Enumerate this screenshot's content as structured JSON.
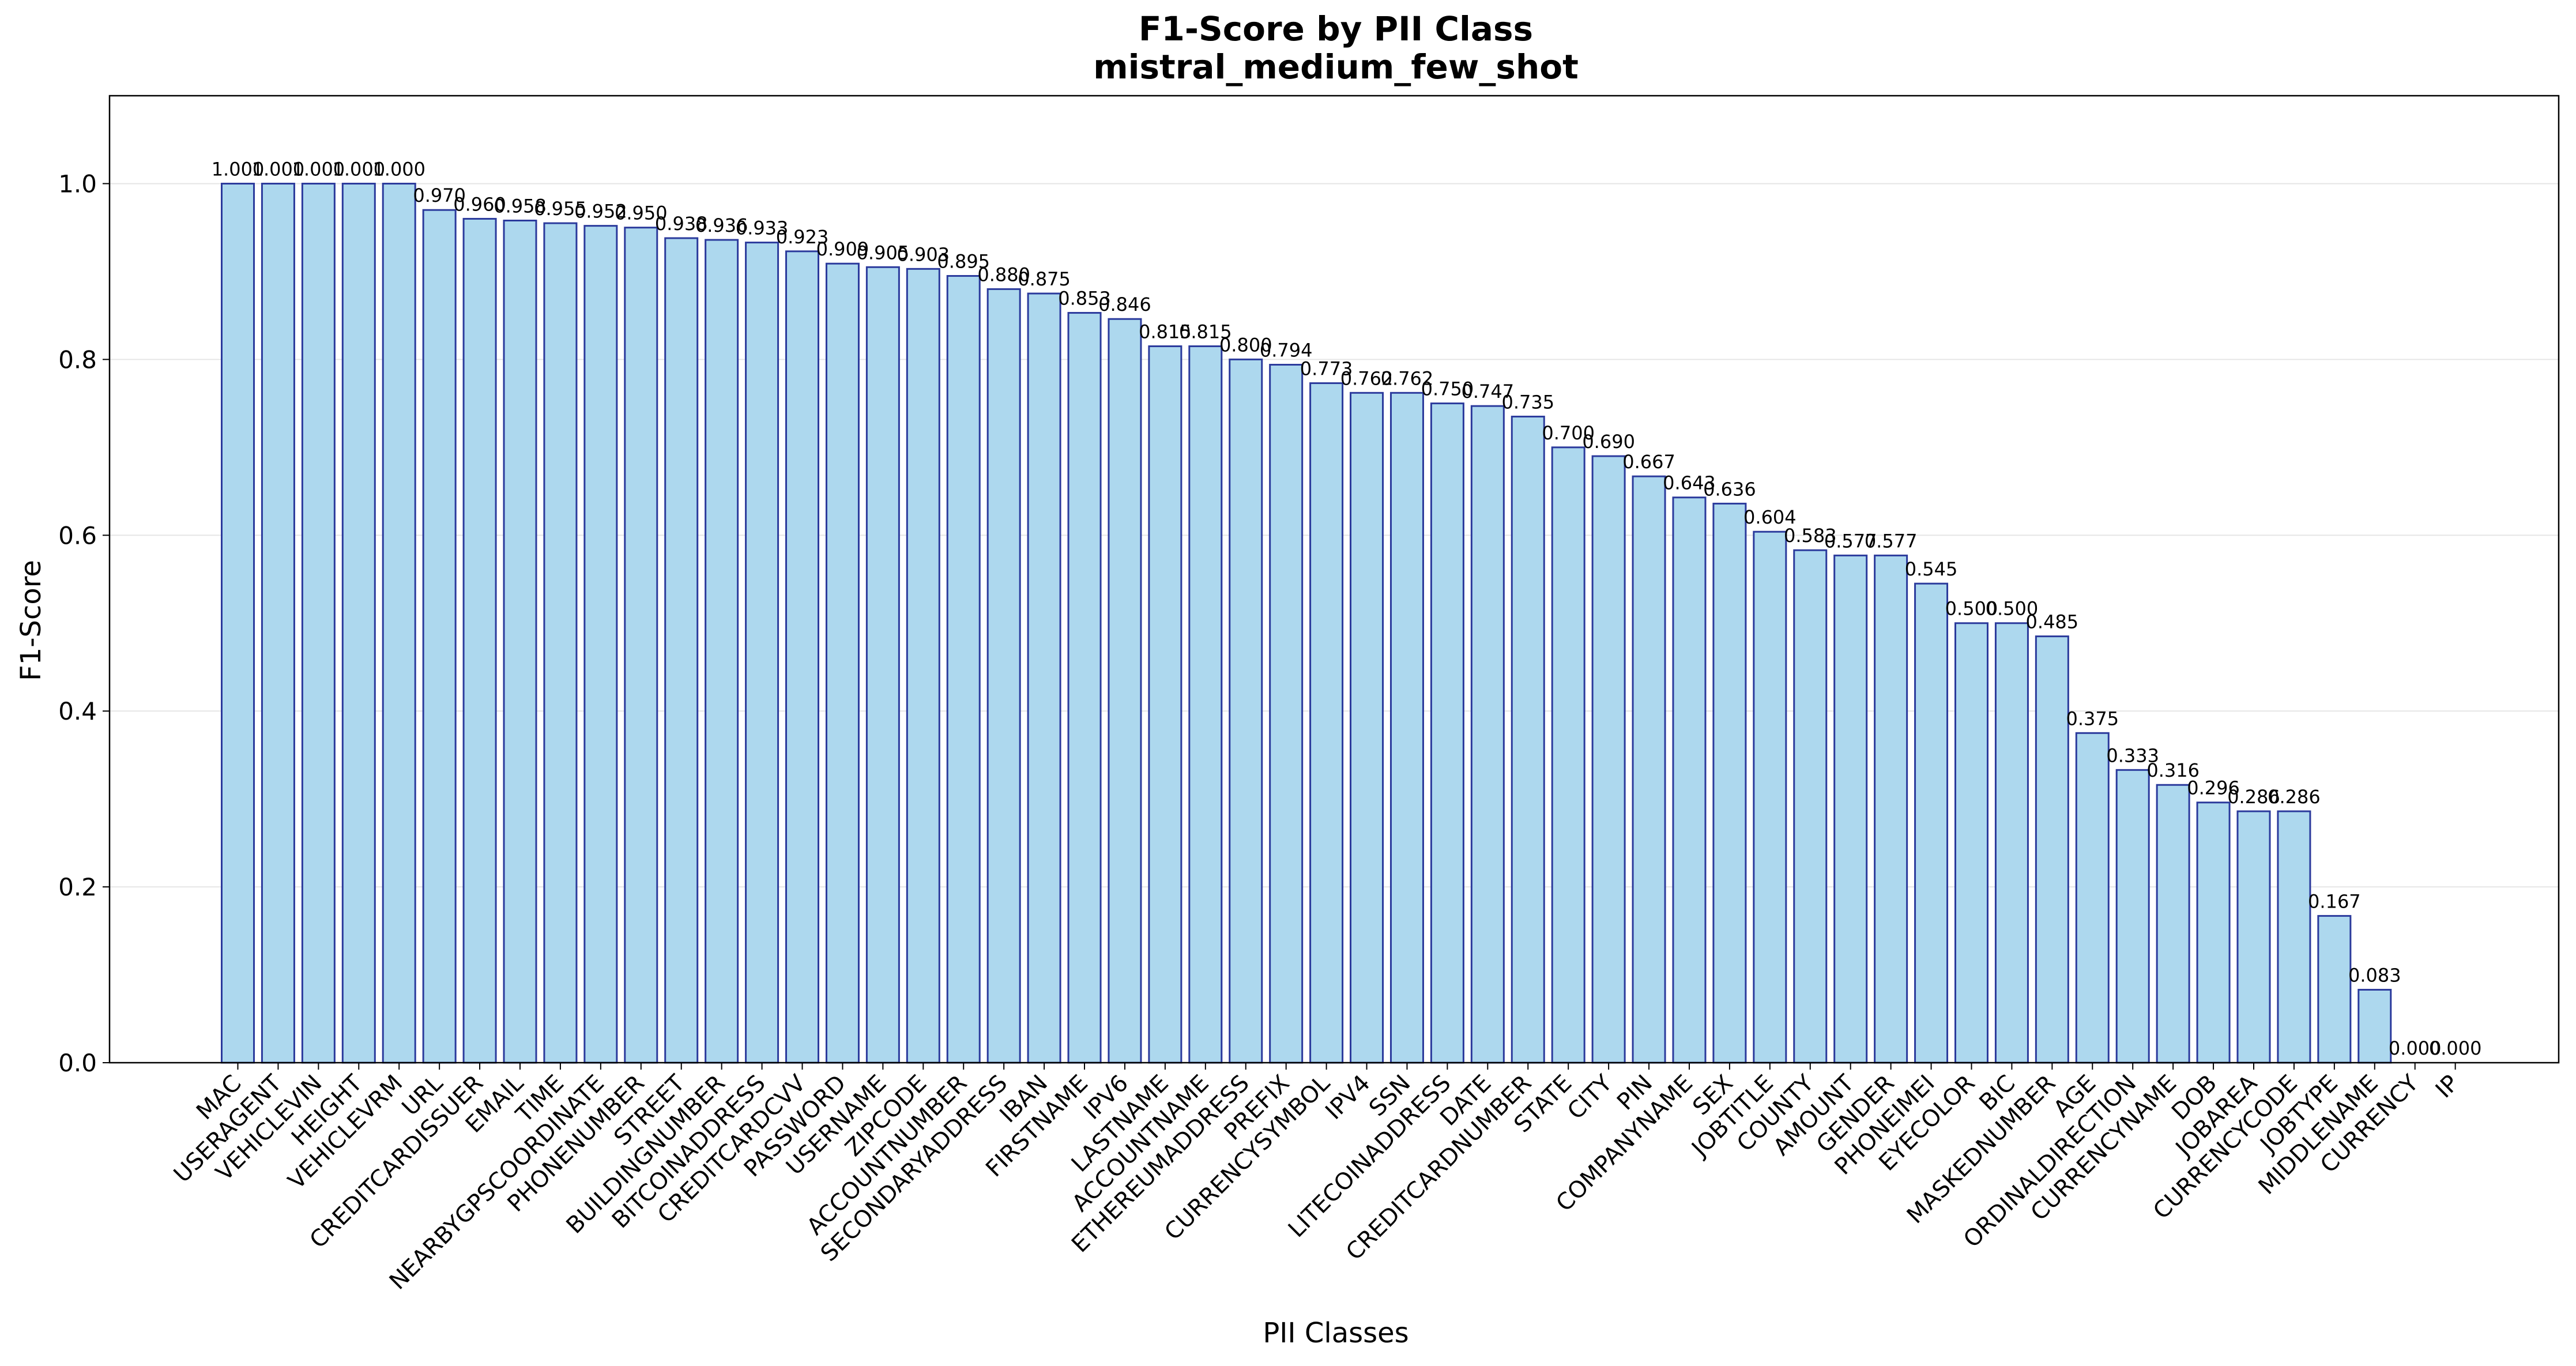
{
  "chart_data": {
    "type": "bar",
    "title": "F1-Score by PII Class",
    "subtitle": "mistral_medium_few_shot",
    "xlabel": "PII Classes",
    "ylabel": "F1-Score",
    "ylim": [
      0,
      1.1
    ],
    "yticks": [
      "0.0",
      "0.2",
      "0.4",
      "0.6",
      "0.8",
      "1.0"
    ],
    "grid": "y",
    "legend": "none",
    "bar_fill": "#add8ee",
    "bar_edge": "#2b3a9c",
    "categories": [
      "MAC",
      "USERAGENT",
      "VEHICLEVIN",
      "HEIGHT",
      "VEHICLEVRM",
      "URL",
      "CREDITCARDISSUER",
      "EMAIL",
      "TIME",
      "NEARBYGPSCOORDINATE",
      "PHONENUMBER",
      "STREET",
      "BUILDINGNUMBER",
      "BITCOINADDRESS",
      "CREDITCARDCVV",
      "PASSWORD",
      "USERNAME",
      "ZIPCODE",
      "ACCOUNTNUMBER",
      "SECONDARYADDRESS",
      "IBAN",
      "FIRSTNAME",
      "IPV6",
      "LASTNAME",
      "ACCOUNTNAME",
      "ETHEREUMADDRESS",
      "PREFIX",
      "CURRENCYSYMBOL",
      "IPV4",
      "SSN",
      "LITECOINADDRESS",
      "DATE",
      "CREDITCARDNUMBER",
      "STATE",
      "CITY",
      "PIN",
      "COMPANYNAME",
      "SEX",
      "JOBTITLE",
      "COUNTY",
      "AMOUNT",
      "GENDER",
      "PHONEIMEI",
      "EYECOLOR",
      "BIC",
      "MASKEDNUMBER",
      "AGE",
      "ORDINALDIRECTION",
      "CURRENCYNAME",
      "DOB",
      "JOBAREA",
      "CURRENCYCODE",
      "JOBTYPE",
      "MIDDLENAME",
      "CURRENCY",
      "IP"
    ],
    "values": [
      1.0,
      1.0,
      1.0,
      1.0,
      1.0,
      0.97,
      0.96,
      0.958,
      0.955,
      0.952,
      0.95,
      0.938,
      0.936,
      0.933,
      0.923,
      0.909,
      0.905,
      0.903,
      0.895,
      0.88,
      0.875,
      0.853,
      0.846,
      0.815,
      0.815,
      0.8,
      0.794,
      0.773,
      0.762,
      0.762,
      0.75,
      0.747,
      0.735,
      0.7,
      0.69,
      0.667,
      0.643,
      0.636,
      0.604,
      0.583,
      0.577,
      0.577,
      0.545,
      0.5,
      0.5,
      0.485,
      0.375,
      0.333,
      0.316,
      0.296,
      0.286,
      0.286,
      0.167,
      0.083,
      0.0,
      0.0
    ],
    "data_labels": [
      "1.000",
      "1.000",
      "1.000",
      "1.000",
      "1.000",
      "0.970",
      "0.960",
      "0.958",
      "0.955",
      "0.952",
      "0.950",
      "0.938",
      "0.936",
      "0.933",
      "0.923",
      "0.909",
      "0.905",
      "0.903",
      "0.895",
      "0.880",
      "0.875",
      "0.853",
      "0.846",
      "0.815",
      "0.815",
      "0.800",
      "0.794",
      "0.773",
      "0.762",
      "0.762",
      "0.750",
      "0.747",
      "0.735",
      "0.700",
      "0.690",
      "0.667",
      "0.643",
      "0.636",
      "0.604",
      "0.583",
      "0.577",
      "0.577",
      "0.545",
      "0.500",
      "0.500",
      "0.485",
      "0.375",
      "0.333",
      "0.316",
      "0.296",
      "0.286",
      "0.286",
      "0.167",
      "0.083",
      "0.000",
      "0.000"
    ]
  }
}
